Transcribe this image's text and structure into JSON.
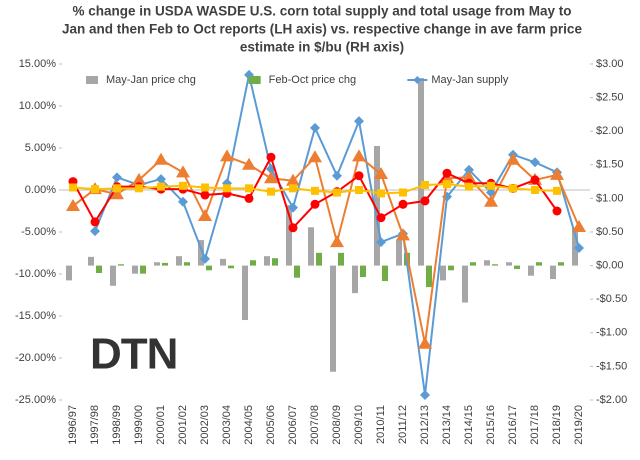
{
  "chart_data": {
    "type": "combo",
    "title": [
      "%  change in USDA WASDE  U.S. corn total supply and total usage from May to",
      "Jan and then Feb to Oct reports (LH axis) vs. respective change in ave farm price",
      "estimate in $/bu (RH axis)"
    ],
    "logo": "DTN",
    "categories": [
      "1996/97",
      "1997/98",
      "1998/99",
      "1999/00",
      "2000/01",
      "2001/02",
      "2002/03",
      "2003/04",
      "2004/05",
      "2005/06",
      "2006/07",
      "2007/08",
      "2008/09",
      "2009/10",
      "2010/11",
      "2011/12",
      "2012/13",
      "2013/14",
      "2014/15",
      "2015/16",
      "2016/17",
      "2017/18",
      "2018/19",
      "2019/20"
    ],
    "ylim": [
      -25,
      15
    ],
    "yticks": [
      {
        "value": -25,
        "label": "-25.00%"
      },
      {
        "value": -20,
        "label": "-20.00%"
      },
      {
        "value": -15,
        "label": "-15.00%"
      },
      {
        "value": -10,
        "label": "-10.00%"
      },
      {
        "value": -5,
        "label": "-5.00%"
      },
      {
        "value": 0,
        "label": "0.00%"
      },
      {
        "value": 5,
        "label": "5.00%"
      },
      {
        "value": 10,
        "label": "10.00%"
      },
      {
        "value": 15,
        "label": "15.00%"
      }
    ],
    "y2lim": [
      -2,
      3
    ],
    "y2ticks": [
      {
        "value": -2,
        "label": "-$2.00"
      },
      {
        "value": -1.5,
        "label": "-$1.50"
      },
      {
        "value": -1,
        "label": "-$1.00"
      },
      {
        "value": -0.5,
        "label": "-$0.50"
      },
      {
        "value": 0,
        "label": "$0.00"
      },
      {
        "value": 0.5,
        "label": "$0.50"
      },
      {
        "value": 1,
        "label": "$1.00"
      },
      {
        "value": 1.5,
        "label": "$1.50"
      },
      {
        "value": 2,
        "label": "$2.00"
      },
      {
        "value": 2.5,
        "label": "$2.50"
      },
      {
        "value": 3,
        "label": "$3.00"
      }
    ],
    "legend": "top",
    "series": [
      {
        "name": "May-Jan price chg",
        "type": "bar",
        "axis": "y2",
        "color": "#a6a6a6",
        "values": [
          -0.22,
          0.13,
          -0.3,
          -0.12,
          0.05,
          0.14,
          0.38,
          0.1,
          -0.81,
          0.14,
          0.9,
          0.57,
          -1.58,
          -0.41,
          1.78,
          0.38,
          2.79,
          -0.22,
          -0.55,
          0.08,
          0.05,
          -0.15,
          -0.2,
          0.56
        ]
      },
      {
        "name": "Feb-Oct price chg",
        "type": "bar",
        "axis": "y2",
        "color": "#70ad47",
        "values": [
          null,
          -0.11,
          0.02,
          -0.12,
          0.04,
          0.05,
          -0.07,
          -0.04,
          0.08,
          0.11,
          -0.18,
          0.19,
          0.19,
          -0.17,
          -0.23,
          0.19,
          -0.32,
          -0.07,
          0.05,
          0.02,
          -0.05,
          0.05,
          0.05,
          null
        ]
      },
      {
        "name": "May-Jan supply",
        "type": "line",
        "marker": "diamond",
        "color": "#5b9bd5",
        "values": [
          null,
          -4.9,
          1.5,
          0.6,
          1.3,
          -1.4,
          -8.2,
          0.8,
          13.7,
          2.5,
          -2.1,
          7.4,
          1.7,
          8.2,
          -6.2,
          -5.2,
          -24.4,
          -0.8,
          2.4,
          -0.3,
          4.2,
          3.3,
          2.1,
          -6.9
        ]
      },
      {
        "type": "line",
        "marker": "triangle",
        "color": "#ed7d31",
        "values": [
          -1.9,
          0.1,
          -0.5,
          1.2,
          3.6,
          2.1,
          -3.1,
          4.0,
          3.0,
          1.4,
          1.1,
          3.9,
          -6.2,
          4.0,
          1.9,
          -5.4,
          -18.3,
          1.4,
          1.5,
          -1.4,
          3.6,
          1.2,
          1.8,
          -4.4
        ]
      },
      {
        "type": "line",
        "marker": "circle",
        "color": "#ff0000",
        "values": [
          1.0,
          -3.8,
          0.4,
          0.4,
          0.1,
          0.1,
          -0.6,
          -0.4,
          -1.0,
          3.9,
          -4.5,
          -1.7,
          -0.2,
          1.7,
          -3.3,
          -1.7,
          -1.3,
          2.0,
          0.8,
          0.8,
          0.2,
          1.2,
          -2.5,
          null
        ]
      },
      {
        "type": "line",
        "marker": "square",
        "color": "#ffc000",
        "values": [
          0.3,
          0.1,
          0.2,
          0.2,
          0.4,
          0.5,
          0.3,
          0.2,
          0.2,
          -0.2,
          0.2,
          -0.1,
          -0.3,
          0.0,
          -0.4,
          -0.3,
          0.6,
          0.7,
          0.4,
          0.5,
          0.2,
          0.0,
          -0.1,
          null
        ]
      }
    ]
  }
}
